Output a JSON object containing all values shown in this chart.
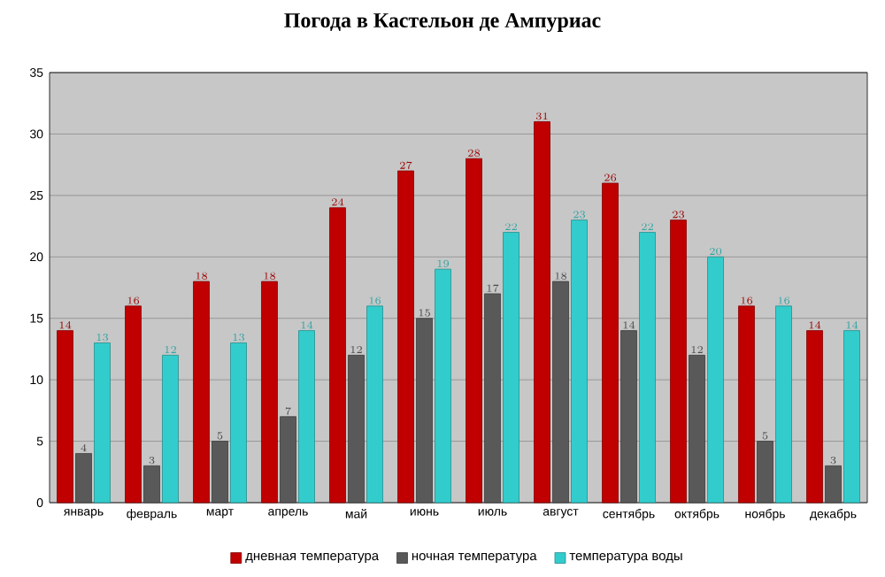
{
  "chart_data": {
    "type": "bar",
    "title": "Погода в Кастельон де Ампуриас",
    "categories": [
      "январь",
      "февраль",
      "март",
      "апрель",
      "май",
      "июнь",
      "июль",
      "август",
      "сентябрь",
      "октябрь",
      "ноябрь",
      "декабрь"
    ],
    "series": [
      {
        "name": "дневная температура",
        "color": "#c00000",
        "values": [
          14,
          16,
          18,
          18,
          24,
          27,
          28,
          31,
          26,
          23,
          16,
          14
        ]
      },
      {
        "name": "ночная температура",
        "color": "#595959",
        "values": [
          4,
          3,
          5,
          7,
          12,
          15,
          17,
          18,
          14,
          12,
          5,
          3
        ]
      },
      {
        "name": "температура воды",
        "color": "#33cccc",
        "values": [
          13,
          12,
          13,
          14,
          16,
          19,
          22,
          23,
          22,
          20,
          16,
          14
        ]
      }
    ],
    "ylim": [
      0,
      35
    ],
    "yticks": [
      0,
      5,
      10,
      15,
      20,
      25,
      30,
      35
    ],
    "grid": "y",
    "legend": "bottom",
    "data_labels": true
  }
}
